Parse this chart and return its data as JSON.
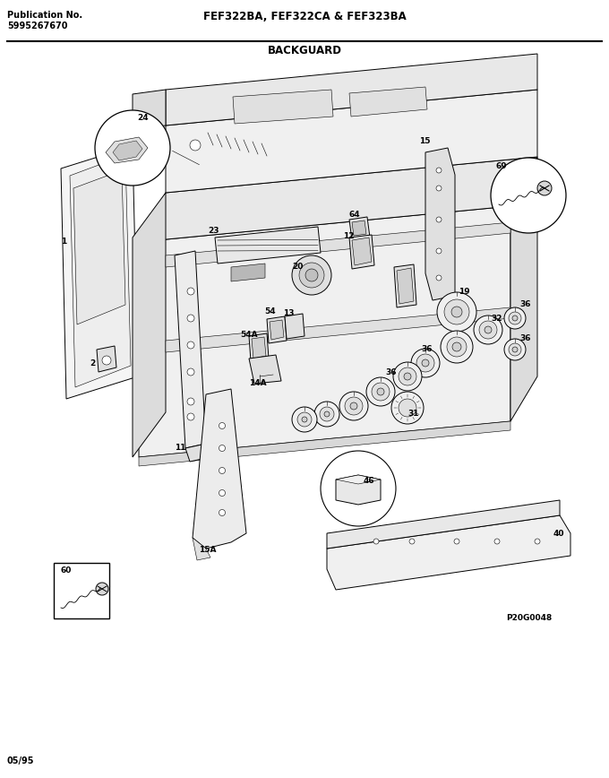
{
  "publication_no_label": "Publication No.",
  "publication_no": "5995267670",
  "model_numbers": "FEF322BA, FEF322CA & FEF323BA",
  "section_title": "BACKGUARD",
  "date_code": "05/95",
  "image_ref": "P20G0048",
  "bg_color": "#ffffff",
  "line_color": "#000000",
  "fill_light": "#f2f2f2",
  "fill_mid": "#e0e0e0",
  "fill_dark": "#c8c8c8",
  "fig_width": 6.8,
  "fig_height": 8.68,
  "dpi": 100
}
